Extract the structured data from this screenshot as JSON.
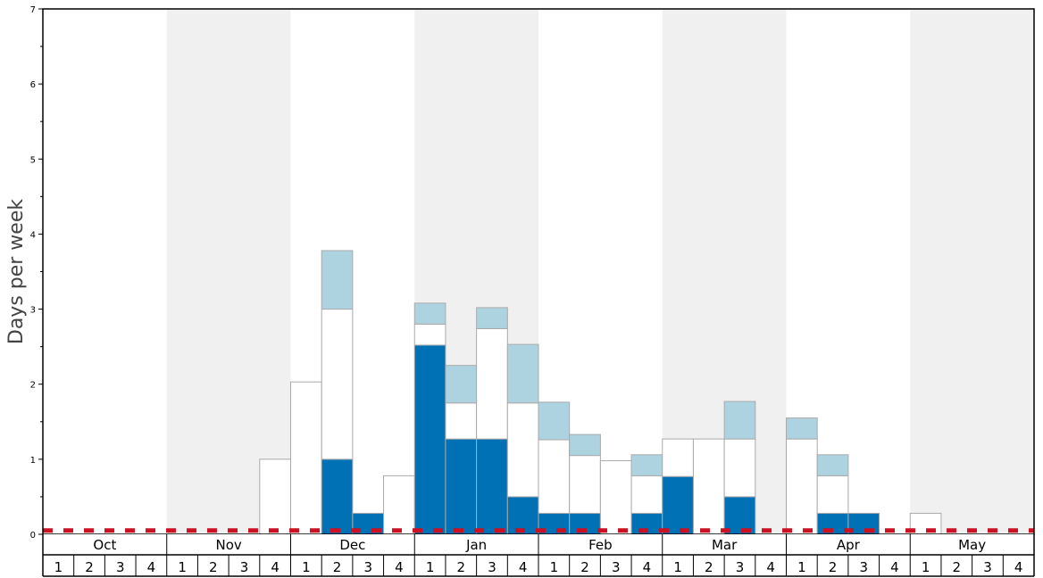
{
  "chart_data": {
    "type": "bar",
    "stacked": true,
    "ylabel": "Days per week",
    "xlabel": "",
    "title": "",
    "ylim": [
      0,
      7
    ],
    "y_major_ticks": [
      0,
      1,
      2,
      3,
      4,
      5,
      6,
      7
    ],
    "y_minor_step": 0.5,
    "months": [
      "Oct",
      "Nov",
      "Dec",
      "Jan",
      "Feb",
      "Mar",
      "Apr",
      "May"
    ],
    "week_labels": [
      "1",
      "2",
      "3",
      "4"
    ],
    "reference_line": {
      "y": 0.05,
      "color": "#cc1122",
      "style": "dashed"
    },
    "colors": {
      "dark": "#0071b5",
      "white": "#ffffff",
      "light": "#aed3e0",
      "band": "#f0f0f0",
      "bar_stroke": "#aaaaaa"
    },
    "series": [
      {
        "name": "",
        "color": "#0071b5",
        "values": [
          0,
          0,
          0,
          0,
          0,
          0,
          0,
          0,
          0,
          1,
          0.28,
          0,
          2.52,
          1.27,
          1.27,
          0.5,
          0.28,
          0.28,
          0,
          0.28,
          0.77,
          0,
          0.5,
          0,
          0,
          0.28,
          0.28,
          0,
          0,
          0,
          0,
          0
        ]
      },
      {
        "name": "",
        "color": "#ffffff",
        "values": [
          0,
          0,
          0,
          0,
          0,
          0,
          0,
          1,
          2.03,
          2,
          0,
          0.78,
          0.28,
          0.48,
          1.47,
          1.25,
          0.98,
          0.77,
          0.98,
          0.5,
          0.5,
          1.27,
          0.77,
          0,
          1.27,
          0.5,
          0,
          0,
          0.28,
          0,
          0,
          0
        ]
      },
      {
        "name": "",
        "color": "#aed3e0",
        "values": [
          0,
          0,
          0,
          0,
          0,
          0,
          0,
          0,
          0,
          0.78,
          0,
          0,
          0.28,
          0.5,
          0.28,
          0.78,
          0.5,
          0.28,
          0,
          0.28,
          0,
          0,
          0.5,
          0,
          0.28,
          0.28,
          0,
          0,
          0,
          0,
          0,
          0
        ]
      }
    ]
  }
}
